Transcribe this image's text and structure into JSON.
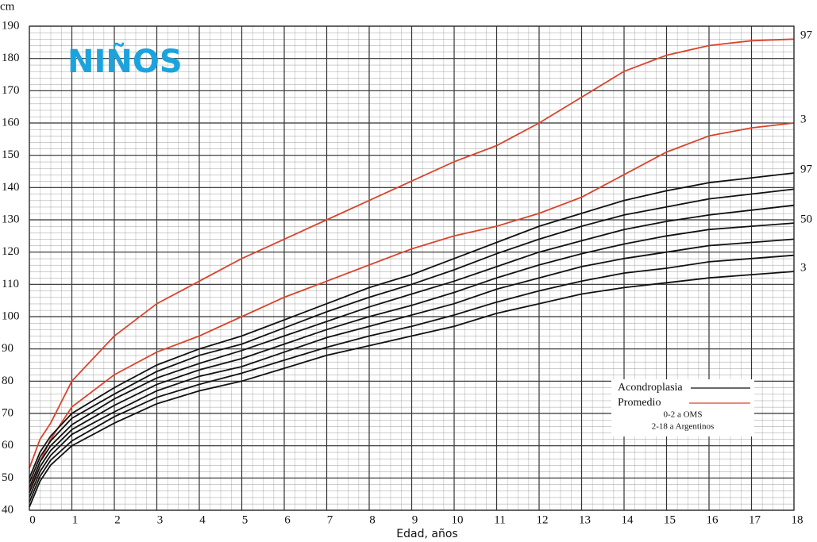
{
  "chart_data": {
    "type": "line",
    "title": "NIÑOS",
    "y_unit": "cm",
    "xlabel": "Edad, años",
    "x": [
      0,
      0.25,
      0.5,
      1,
      2,
      3,
      4,
      5,
      6,
      7,
      8,
      9,
      10,
      11,
      12,
      13,
      14,
      15,
      16,
      17,
      18
    ],
    "xlim": [
      0,
      18
    ],
    "xticks": [
      0,
      1,
      2,
      3,
      4,
      5,
      6,
      7,
      8,
      9,
      10,
      11,
      12,
      13,
      14,
      15,
      16,
      17,
      18
    ],
    "ylim": [
      40,
      190
    ],
    "yticks": [
      40,
      50,
      60,
      70,
      80,
      90,
      100,
      110,
      120,
      130,
      140,
      150,
      160,
      170,
      180,
      190
    ],
    "grid": true,
    "series": [
      {
        "name": "97",
        "color": "#d9442c",
        "values": [
          53,
          62,
          67,
          80,
          94,
          104,
          111,
          118,
          124,
          130,
          136,
          142,
          148,
          153,
          160,
          168,
          176,
          181,
          184,
          185.5,
          186
        ]
      },
      {
        "name": "3",
        "color": "#d9442c",
        "values": [
          46,
          55,
          62,
          72,
          82,
          89,
          94,
          100,
          106,
          111,
          116,
          121,
          125,
          128,
          132,
          137,
          144,
          151,
          156,
          158.5,
          160
        ]
      },
      {
        "name": "97",
        "color": "#111111",
        "values": [
          50,
          58,
          63,
          70,
          78,
          85,
          90,
          94,
          99,
          104,
          109,
          113,
          118,
          123,
          128,
          132,
          136,
          139,
          141.5,
          143,
          144.5
        ]
      },
      {
        "color": "#111111",
        "values": [
          48.5,
          56.5,
          61.5,
          68.5,
          76,
          83,
          88,
          91.5,
          96.5,
          101.5,
          106,
          110,
          114.5,
          119.5,
          124,
          128,
          131.5,
          134,
          136.5,
          138,
          139.5
        ]
      },
      {
        "color": "#111111",
        "values": [
          47,
          55,
          60,
          66.5,
          74.5,
          81,
          85.5,
          89.5,
          94,
          98.5,
          103,
          107,
          111,
          115.5,
          120,
          123.5,
          127,
          129.5,
          131.5,
          133,
          134.5
        ]
      },
      {
        "name": "50",
        "color": "#111111",
        "values": [
          45.5,
          53.5,
          58.5,
          65,
          72.5,
          79,
          83.5,
          87,
          91.5,
          96,
          100,
          103.5,
          107.5,
          112,
          116,
          119.5,
          122.5,
          125,
          127,
          128,
          129
        ]
      },
      {
        "color": "#111111",
        "values": [
          44,
          52,
          57,
          63.5,
          70.5,
          77,
          81.5,
          84.5,
          89,
          93.5,
          97,
          100.5,
          104,
          108.5,
          112,
          115.5,
          118,
          120,
          122,
          123,
          124
        ]
      },
      {
        "color": "#111111",
        "values": [
          42.5,
          50.5,
          55.5,
          61.5,
          69,
          75,
          79,
          82.5,
          86.5,
          90.5,
          94,
          97,
          100.5,
          104.5,
          108,
          111,
          113.5,
          115,
          117,
          118,
          119
        ]
      },
      {
        "name": "3",
        "color": "#111111",
        "values": [
          41,
          49,
          54,
          60,
          67,
          73,
          77,
          80,
          84,
          88,
          91,
          94,
          97,
          101,
          104,
          107,
          109,
          110.5,
          112,
          113,
          114
        ]
      }
    ],
    "legend": [
      {
        "label": "Acondroplasia",
        "color": "#111111"
      },
      {
        "label": "Promedio",
        "color": "#d9442c"
      }
    ],
    "legend_notes": [
      "0-2 a OMS",
      "2-18 a Argentinos"
    ],
    "title_color": "#1ba3dd"
  }
}
